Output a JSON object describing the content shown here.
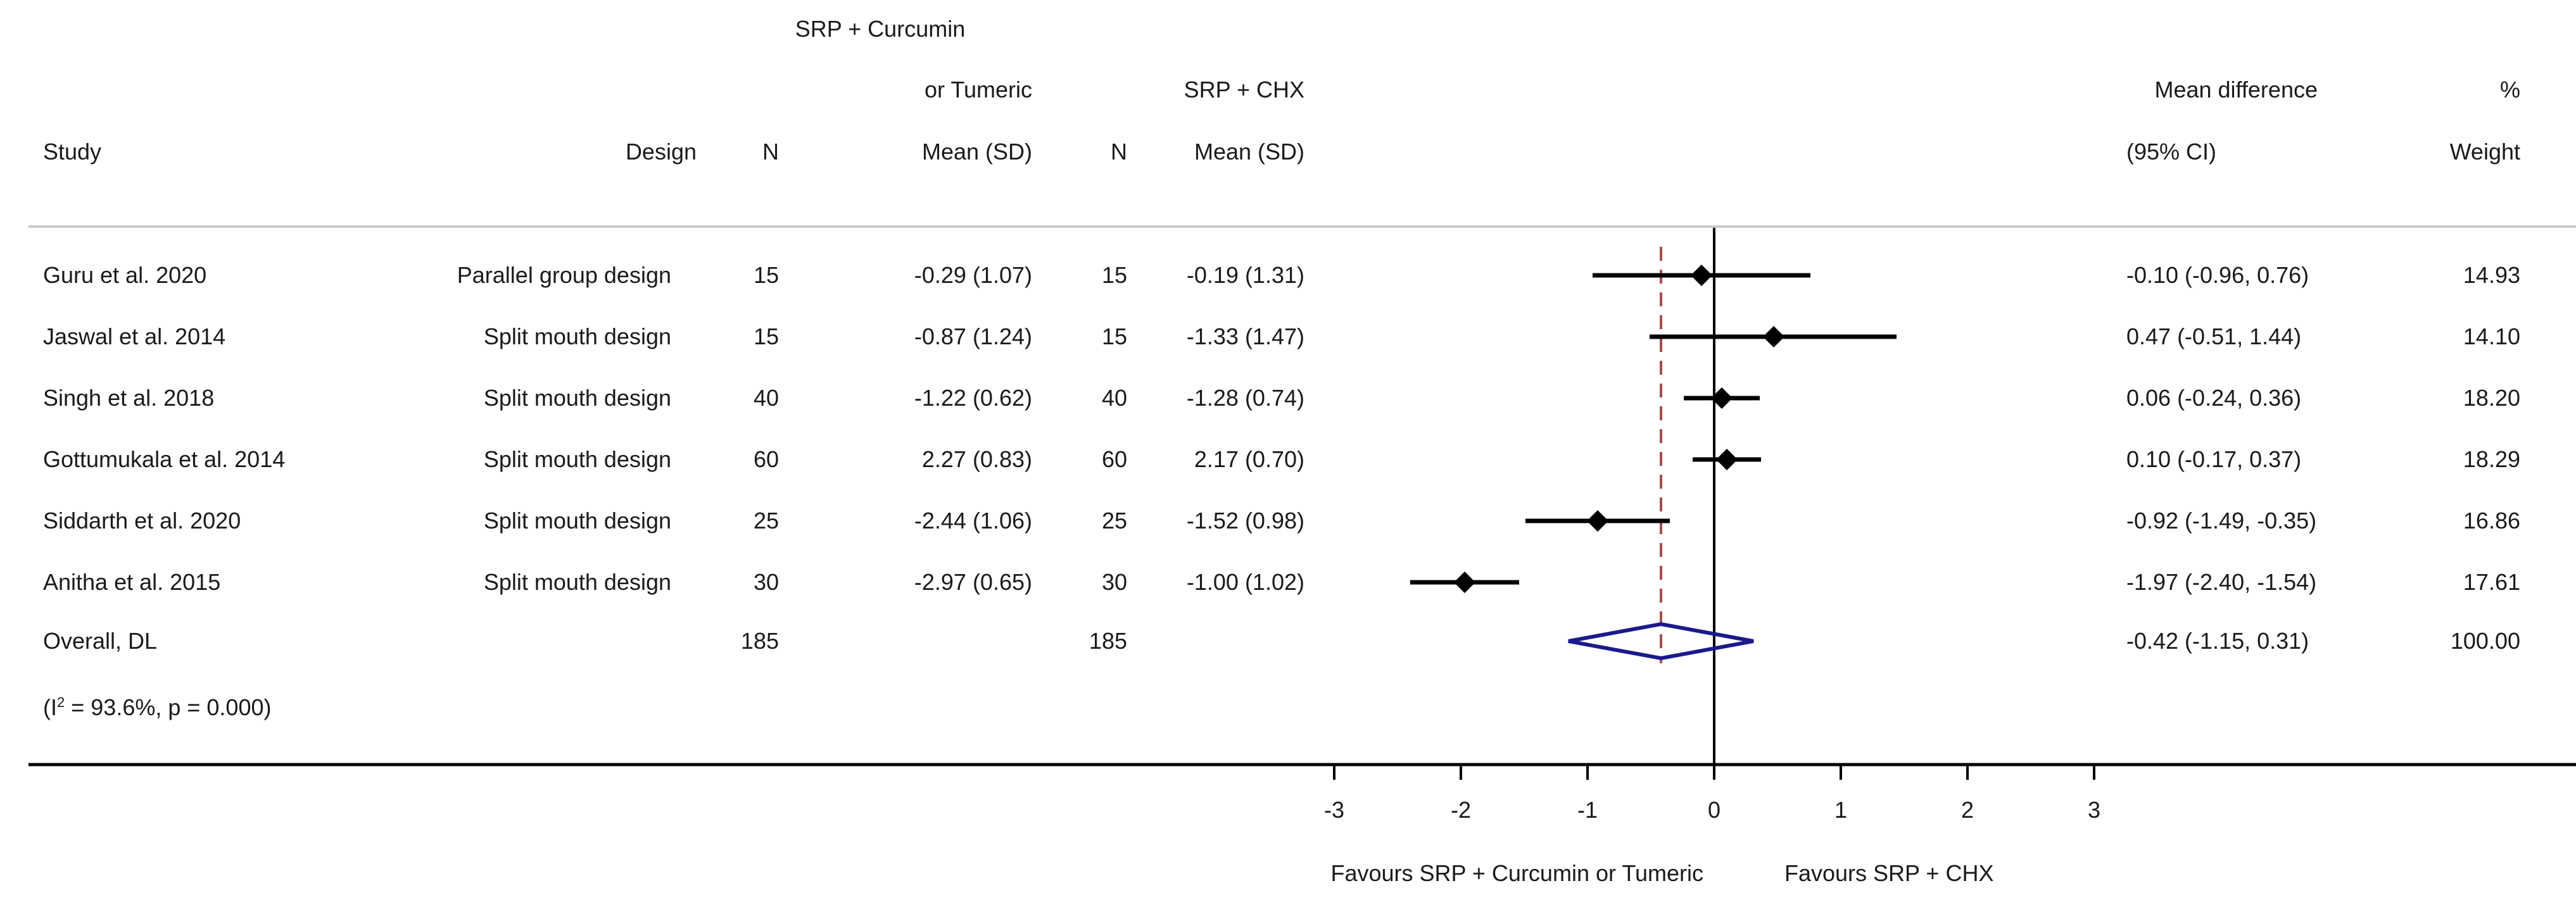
{
  "headers": {
    "study": "Study",
    "design": "Design",
    "n1": "N",
    "group1_line1": "SRP + Curcumin",
    "group1_line2": "or Tumeric",
    "group1_line3": "Mean (SD)",
    "n2": "N",
    "group2_line1": "SRP + CHX",
    "group2_line2": "Mean (SD)",
    "md_line1": "Mean difference",
    "md_line2": "(95% CI)",
    "weight_line1": "%",
    "weight_line2": "Weight"
  },
  "rows": [
    {
      "study": "Guru et al. 2020",
      "design": "Parallel group design",
      "n1": "15",
      "m1": "-0.29 (1.07)",
      "n2": "15",
      "m2": "-0.19 (1.31)",
      "md": "-0.10 (-0.96, 0.76)",
      "weight": "14.93"
    },
    {
      "study": "Jaswal et al. 2014",
      "design": "Split mouth design",
      "n1": "15",
      "m1": "-0.87 (1.24)",
      "n2": "15",
      "m2": "-1.33 (1.47)",
      "md": "0.47 (-0.51, 1.44)",
      "weight": "14.10"
    },
    {
      "study": "Singh et al. 2018",
      "design": "Split mouth design",
      "n1": "40",
      "m1": "-1.22 (0.62)",
      "n2": "40",
      "m2": "-1.28 (0.74)",
      "md": "0.06 (-0.24, 0.36)",
      "weight": "18.20"
    },
    {
      "study": "Gottumukala et al. 2014",
      "design": "Split mouth design",
      "n1": "60",
      "m1": "2.27 (0.83)",
      "n2": "60",
      "m2": "2.17 (0.70)",
      "md": "0.10 (-0.17, 0.37)",
      "weight": "18.29"
    },
    {
      "study": "Siddarth et al. 2020",
      "design": "Split mouth design",
      "n1": "25",
      "m1": "-2.44 (1.06)",
      "n2": "25",
      "m2": "-1.52 (0.98)",
      "md": "-0.92 (-1.49, -0.35)",
      "weight": "16.86"
    },
    {
      "study": "Anitha et al. 2015",
      "design": "Split mouth design",
      "n1": "30",
      "m1": "-2.97 (0.65)",
      "n2": "30",
      "m2": "-1.00 (1.02)",
      "md": "-1.97 (-2.40, -1.54)",
      "weight": "17.61"
    }
  ],
  "overall": {
    "label": "Overall, DL",
    "n1": "185",
    "n2": "185",
    "md": "-0.42 (-1.15, 0.31)",
    "weight": "100.00"
  },
  "heterogeneity": {
    "prefix": "(I",
    "sup": "2",
    "suffix": " = 93.6%, p = 0.000)"
  },
  "axis_labels": {
    "left": "Favours SRP + Curcumin or Tumeric",
    "right": "Favours SRP + CHX"
  },
  "colors": {
    "overall_diamond": "#1a1a8c",
    "overall_line": "#a05050",
    "lines": "#000000",
    "rule": "#c8c8c8"
  },
  "chart_data": {
    "type": "forest",
    "title": "",
    "xlabel": "",
    "xlim": [
      -3,
      3
    ],
    "ticks": [
      -3,
      -2,
      -1,
      0,
      1,
      2,
      3
    ],
    "null_value": 0,
    "studies": [
      {
        "name": "Guru et al. 2020",
        "est": -0.1,
        "lo": -0.96,
        "hi": 0.76,
        "weight": 14.93
      },
      {
        "name": "Jaswal et al. 2014",
        "est": 0.47,
        "lo": -0.51,
        "hi": 1.44,
        "weight": 14.1
      },
      {
        "name": "Singh et al. 2018",
        "est": 0.06,
        "lo": -0.24,
        "hi": 0.36,
        "weight": 18.2
      },
      {
        "name": "Gottumukala et al. 2014",
        "est": 0.1,
        "lo": -0.17,
        "hi": 0.37,
        "weight": 18.29
      },
      {
        "name": "Siddarth et al. 2020",
        "est": -0.92,
        "lo": -1.49,
        "hi": -0.35,
        "weight": 16.86
      },
      {
        "name": "Anitha et al. 2015",
        "est": -1.97,
        "lo": -2.4,
        "hi": -1.54,
        "weight": 17.61
      }
    ],
    "overall": {
      "name": "Overall, DL",
      "est": -0.42,
      "lo": -1.15,
      "hi": 0.31
    }
  }
}
